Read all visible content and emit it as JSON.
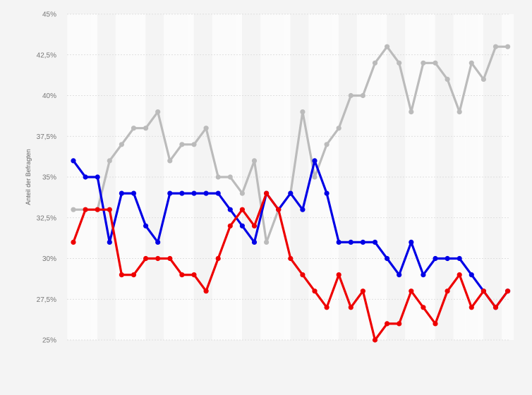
{
  "chart_data": {
    "type": "line",
    "title": "",
    "xlabel": "",
    "ylabel": "Anteil der Befragten",
    "ylim": [
      25,
      45
    ],
    "y_ticks": [
      "25%",
      "27,5%",
      "30%",
      "32,5%",
      "35%",
      "37,5%",
      "40%",
      "42,5%",
      "45%"
    ],
    "grid": "horizontal",
    "point_count": 37,
    "series": [
      {
        "color": "#0000e6",
        "values": [
          36,
          35,
          35,
          31,
          34,
          34,
          32,
          31,
          34,
          34,
          34,
          34,
          34,
          33,
          32,
          31,
          34,
          33,
          34,
          33,
          36,
          34,
          31,
          31,
          31,
          31,
          30,
          29,
          31,
          29,
          30,
          30,
          30,
          29,
          28,
          27,
          28
        ]
      },
      {
        "color": "#ee0000",
        "values": [
          31,
          33,
          33,
          33,
          29,
          29,
          30,
          30,
          30,
          29,
          29,
          28,
          30,
          32,
          33,
          32,
          34,
          33,
          30,
          29,
          28,
          27,
          29,
          27,
          28,
          25,
          26,
          26,
          28,
          27,
          26,
          28,
          29,
          27,
          28,
          27,
          28
        ]
      },
      {
        "color": "#bbbbbb",
        "values": [
          33,
          33,
          33,
          36,
          37,
          38,
          38,
          39,
          36,
          37,
          37,
          38,
          35,
          35,
          34,
          36,
          31,
          33,
          34,
          39,
          35,
          37,
          38,
          40,
          40,
          42,
          43,
          42,
          39,
          42,
          42,
          41,
          39,
          42,
          41,
          43,
          43
        ]
      }
    ]
  }
}
